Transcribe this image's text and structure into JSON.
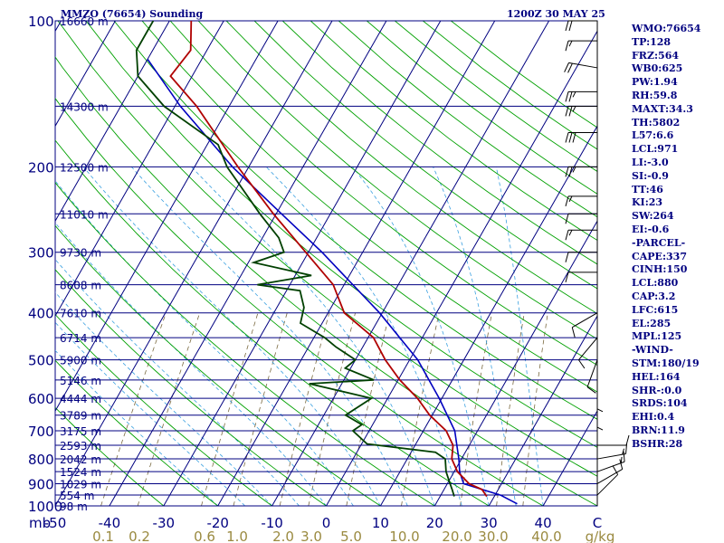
{
  "header": {
    "station": "MMZO (76654) Sounding",
    "datetime": "1200Z 30 MAY 25"
  },
  "indices": [
    "WMO:76654",
    "TP:128",
    "FRZ:564",
    "WB0:625",
    "PW:1.94",
    "RH:59.8",
    "MAXT:34.3",
    "TH:5802",
    "L57:6.6",
    "LCL:971",
    "LI:-3.0",
    "SI:-0.9",
    "TT:46",
    "KI:23",
    "SW:264",
    "EI:-0.6",
    "-PARCEL-",
    "CAPE:337",
    "CINH:150",
    "LCL:880",
    "CAP:3.2",
    "LFC:615",
    "EL:285",
    "MPL:125",
    "-WIND-",
    "STM:180/19",
    "HEL:164",
    "SHR-:0.0",
    "SRDS:104",
    "EHI:0.4",
    "BRN:11.9",
    "BSHR:28"
  ],
  "colors": {
    "isobar": "#000080",
    "isotherm": "#000080",
    "dry_adiabat": "#00a000",
    "moist_adiabat": "#3aa0e0",
    "mixing_ratio": "#7a6a40",
    "temperature": "#b00000",
    "dewpoint": "#004000",
    "parcel": "#0000c0",
    "barb": "#000000",
    "text": "#000080",
    "mixing_label": "#9a8a40"
  },
  "chart_data": {
    "type": "skew-t log-p",
    "pressure_unit": "mb",
    "temp_unit": "C",
    "pressure_range": [
      1000,
      100
    ],
    "temperature_range": [
      -50,
      50
    ],
    "pressure_ticks": [
      100,
      200,
      300,
      400,
      500,
      600,
      700,
      800,
      900,
      1000
    ],
    "temperature_ticks": [
      -50,
      -40,
      -30,
      -20,
      -10,
      0,
      10,
      20,
      30,
      40,
      50
    ],
    "mixing_ratio_ticks": [
      "0.1",
      "0.2",
      "0.6",
      "1.0",
      "2.0",
      "3.0",
      "5.0",
      "10.0",
      "20.0",
      "30.0",
      "40.0",
      "g/kg"
    ],
    "height_labels": [
      {
        "p": 100,
        "label": "16660 m"
      },
      {
        "p": 150,
        "label": "14300 m"
      },
      {
        "p": 200,
        "label": "12500 m"
      },
      {
        "p": 250,
        "label": "11010 m"
      },
      {
        "p": 300,
        "label": "9730 m"
      },
      {
        "p": 350,
        "label": "8608 m"
      },
      {
        "p": 400,
        "label": "7610 m"
      },
      {
        "p": 450,
        "label": "6714 m"
      },
      {
        "p": 500,
        "label": "5900 m"
      },
      {
        "p": 550,
        "label": "5146 m"
      },
      {
        "p": 600,
        "label": "4444 m"
      },
      {
        "p": 650,
        "label": "3789 m"
      },
      {
        "p": 700,
        "label": "3175 m"
      },
      {
        "p": 750,
        "label": "2593 m"
      },
      {
        "p": 800,
        "label": "2042 m"
      },
      {
        "p": 850,
        "label": "1524 m"
      },
      {
        "p": 900,
        "label": "1029 m"
      },
      {
        "p": 950,
        "label": "554 m"
      },
      {
        "p": 1000,
        "label": "98 m"
      }
    ],
    "temperature_profile": [
      [
        956,
        28.6
      ],
      [
        925,
        27.0
      ],
      [
        900,
        24.0
      ],
      [
        850,
        20.6
      ],
      [
        800,
        18.2
      ],
      [
        750,
        17.0
      ],
      [
        700,
        14.2
      ],
      [
        650,
        9.5
      ],
      [
        600,
        5.5
      ],
      [
        550,
        0.3
      ],
      [
        500,
        -4.5
      ],
      [
        450,
        -9.0
      ],
      [
        400,
        -17.0
      ],
      [
        350,
        -22.0
      ],
      [
        300,
        -30.5
      ],
      [
        250,
        -40.5
      ],
      [
        200,
        -52.0
      ],
      [
        150,
        -66.0
      ],
      [
        130,
        -74.0
      ],
      [
        115,
        -73.0
      ],
      [
        100,
        -76.0
      ]
    ],
    "dewpoint_profile": [
      [
        956,
        22.6
      ],
      [
        925,
        21.5
      ],
      [
        900,
        20.5
      ],
      [
        850,
        18.5
      ],
      [
        800,
        17.0
      ],
      [
        775,
        14.5
      ],
      [
        745,
        1.0
      ],
      [
        700,
        -3.0
      ],
      [
        680,
        -2.0
      ],
      [
        650,
        -6.0
      ],
      [
        600,
        -3.0
      ],
      [
        560,
        -16.0
      ],
      [
        550,
        -4.5
      ],
      [
        520,
        -11.0
      ],
      [
        500,
        -10.0
      ],
      [
        470,
        -15.0
      ],
      [
        450,
        -18.0
      ],
      [
        420,
        -24.0
      ],
      [
        390,
        -25.0
      ],
      [
        360,
        -27.5
      ],
      [
        350,
        -36.0
      ],
      [
        335,
        -27.0
      ],
      [
        315,
        -39.0
      ],
      [
        300,
        -34.5
      ],
      [
        280,
        -37.0
      ],
      [
        250,
        -43.0
      ],
      [
        200,
        -54.0
      ],
      [
        180,
        -58.0
      ],
      [
        150,
        -72.0
      ],
      [
        130,
        -80.0
      ],
      [
        115,
        -83.0
      ],
      [
        100,
        -83.0
      ]
    ],
    "parcel_profile": [
      [
        990,
        35.0
      ],
      [
        950,
        31.0
      ],
      [
        900,
        23.0
      ],
      [
        850,
        21.0
      ],
      [
        800,
        19.5
      ],
      [
        700,
        15.8
      ],
      [
        600,
        9.5
      ],
      [
        500,
        1.5
      ],
      [
        400,
        -10.5
      ],
      [
        300,
        -27.5
      ],
      [
        250,
        -39.0
      ],
      [
        200,
        -53.0
      ],
      [
        150,
        -69.0
      ],
      [
        120,
        -80.0
      ]
    ],
    "wind_barbs": [
      {
        "p": 100,
        "dir": 270,
        "kt": 20
      },
      {
        "p": 110,
        "dir": 270,
        "kt": 15
      },
      {
        "p": 125,
        "dir": 280,
        "kt": 20
      },
      {
        "p": 140,
        "dir": 270,
        "kt": 25
      },
      {
        "p": 150,
        "dir": 270,
        "kt": 25
      },
      {
        "p": 170,
        "dir": 270,
        "kt": 30
      },
      {
        "p": 200,
        "dir": 270,
        "kt": 25
      },
      {
        "p": 230,
        "dir": 270,
        "kt": 15
      },
      {
        "p": 250,
        "dir": 270,
        "kt": 10
      },
      {
        "p": 270,
        "dir": 270,
        "kt": 15
      },
      {
        "p": 300,
        "dir": 270,
        "kt": 10
      },
      {
        "p": 330,
        "dir": 270,
        "kt": 10
      },
      {
        "p": 400,
        "dir": 240,
        "kt": 10
      },
      {
        "p": 450,
        "dir": 220,
        "kt": 10
      },
      {
        "p": 500,
        "dir": 200,
        "kt": 10
      },
      {
        "p": 550,
        "dir": 180,
        "kt": 5
      },
      {
        "p": 600,
        "dir": 180,
        "kt": 5
      },
      {
        "p": 750,
        "dir": 90,
        "kt": 10
      },
      {
        "p": 800,
        "dir": 80,
        "kt": 15
      },
      {
        "p": 850,
        "dir": 70,
        "kt": 15
      },
      {
        "p": 900,
        "dir": 60,
        "kt": 10
      },
      {
        "p": 950,
        "dir": 45,
        "kt": 10
      }
    ]
  }
}
